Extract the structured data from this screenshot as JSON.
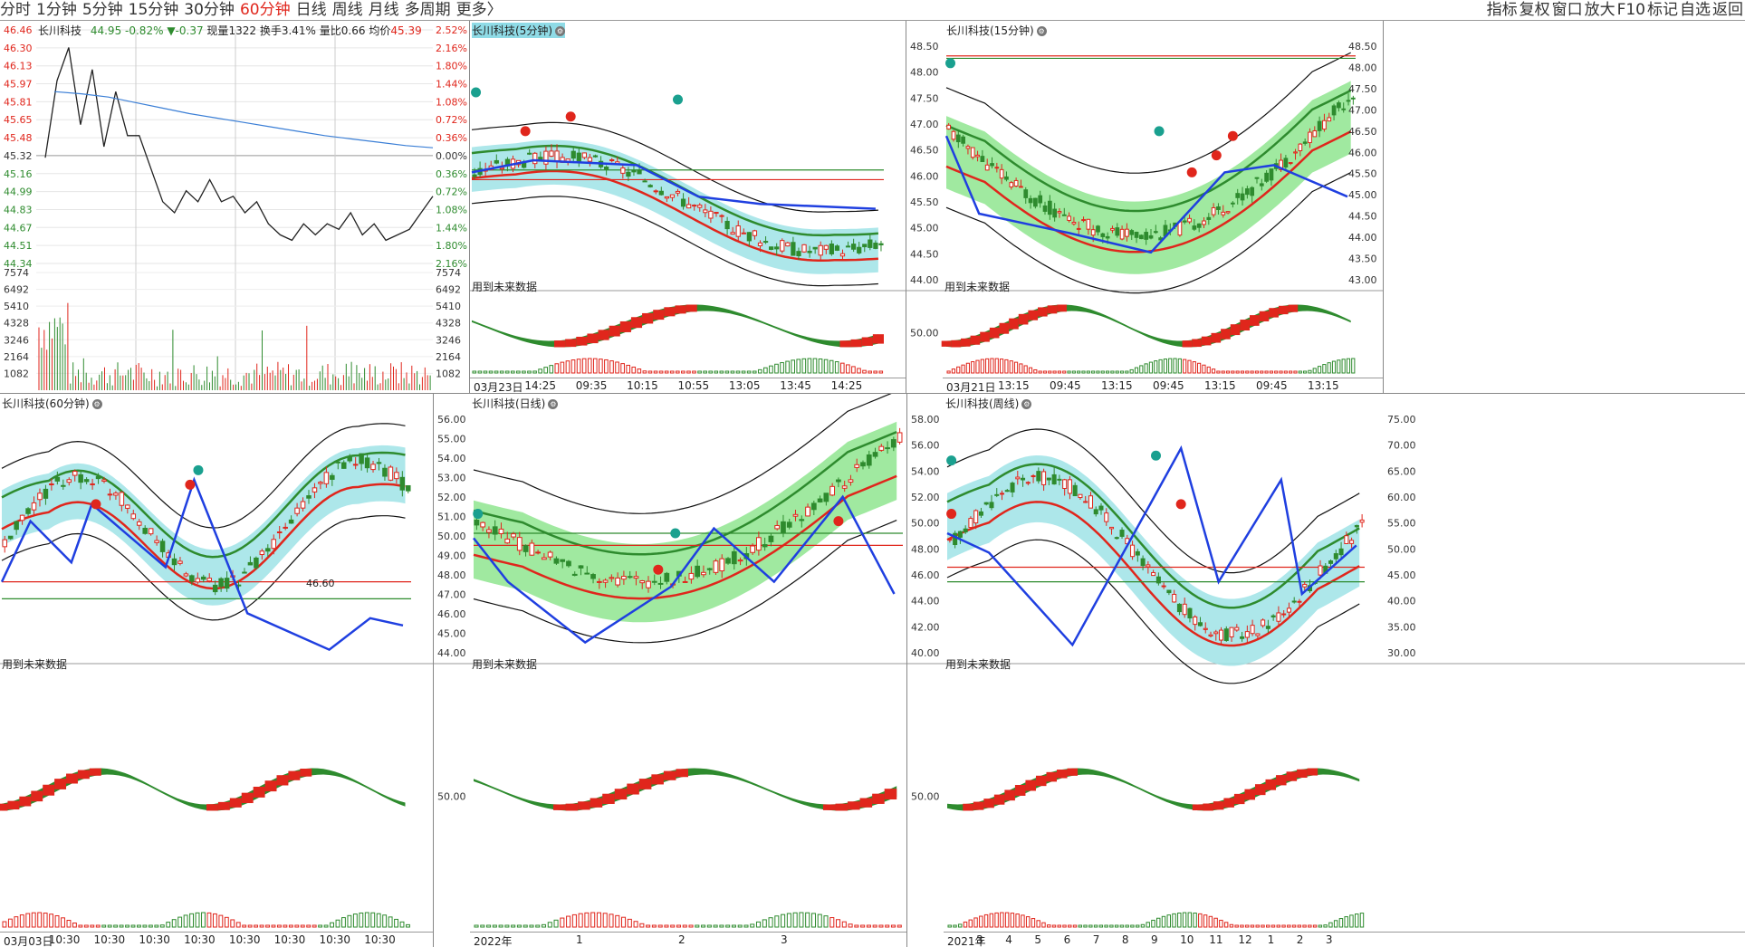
{
  "toolbar": {
    "timeframes": [
      "分时",
      "1分钟",
      "5分钟",
      "15分钟",
      "30分钟",
      "60分钟",
      "日线",
      "周线",
      "月线",
      "多周期",
      "更多〉"
    ],
    "active_timeframe": "60分钟",
    "right_items": [
      "指标",
      "复权",
      "窗口",
      "放大",
      "F10",
      "标记",
      "自选",
      "返回"
    ]
  },
  "intraday": {
    "stock_name": "长川科技",
    "price": "44.95",
    "change_pct": "-0.82%",
    "change": "▼-0.37",
    "volume_label": "现量",
    "volume": "1322",
    "turnover_label": "换手",
    "turnover": "3.41%",
    "ratio_label": "量比",
    "ratio": "0.66",
    "avg_label": "均价",
    "avg": "45.39",
    "price_ticks": [
      "46.46",
      "46.30",
      "46.13",
      "45.97",
      "45.81",
      "45.65",
      "45.48",
      "45.32",
      "45.16",
      "44.99",
      "44.83",
      "44.67",
      "44.51",
      "44.34"
    ],
    "pct_ticks": [
      "2.52%",
      "2.16%",
      "1.80%",
      "1.44%",
      "1.08%",
      "0.72%",
      "0.36%",
      "0.00%",
      "0.36%",
      "0.72%",
      "1.08%",
      "1.44%",
      "1.80%",
      "2.16%"
    ],
    "vol_ticks": [
      "7574",
      "6492",
      "5410",
      "4328",
      "3246",
      "2164",
      "1082"
    ],
    "price_series": [
      45.3,
      46.0,
      46.3,
      45.6,
      46.1,
      45.4,
      45.9,
      45.5,
      45.5,
      45.2,
      44.9,
      44.8,
      45.0,
      44.9,
      45.1,
      44.9,
      44.95,
      44.8,
      44.9,
      44.7,
      44.6,
      44.55,
      44.7,
      44.6,
      44.7,
      44.65,
      44.8,
      44.6,
      44.7,
      44.55,
      44.6,
      44.65,
      44.8,
      44.95
    ],
    "avg_series": [
      45.9,
      45.88,
      45.85,
      45.8,
      45.75,
      45.7,
      45.66,
      45.62,
      45.58,
      45.54,
      45.5,
      45.47,
      45.44,
      45.41,
      45.39
    ]
  },
  "panels": [
    {
      "title": "长川科技(5分钟)",
      "highlight": true,
      "future_label": "用到未来数据",
      "y_ticks": [],
      "x_labels": [
        "03月23日",
        "14:25",
        "09:35",
        "10:15",
        "10:55",
        "13:05",
        "13:45",
        "14:25"
      ]
    },
    {
      "title": "长川科技(15分钟)",
      "highlight": false,
      "future_label": "用到未来数据",
      "y_ticks": [
        "48.50",
        "48.00",
        "47.50",
        "47.00",
        "46.50",
        "46.00",
        "45.50",
        "45.00",
        "44.50",
        "44.00"
      ],
      "y_right": [
        "48.50",
        "48.00",
        "47.50",
        "47.00",
        "46.50",
        "46.00",
        "45.50",
        "45.00",
        "44.50",
        "44.00",
        "43.50",
        "43.00"
      ],
      "osc_tick": "50.00",
      "x_labels": [
        "03月21日",
        "13:15",
        "09:45",
        "13:15",
        "09:45",
        "13:15",
        "09:45",
        "13:15"
      ]
    },
    {
      "title": "长川科技(60分钟)",
      "highlight": false,
      "future_label": "用到未来数据",
      "price_label": "46.60",
      "x_labels": [
        "03月03日",
        "10:30",
        "10:30",
        "10:30",
        "10:30",
        "10:30",
        "10:30",
        "10:30",
        "10:30"
      ]
    },
    {
      "title": "长川科技(日线)",
      "highlight": false,
      "future_label": "用到未来数据",
      "y_ticks": [
        "56.00",
        "55.00",
        "54.00",
        "53.00",
        "52.00",
        "51.00",
        "50.00",
        "49.00",
        "48.00",
        "47.00",
        "46.00",
        "45.00",
        "44.00"
      ],
      "osc_tick": "50.00",
      "x_labels": [
        "2022年",
        "1",
        "2",
        "3"
      ]
    },
    {
      "title": "长川科技(周线)",
      "highlight": false,
      "future_label": "用到未来数据",
      "y_ticks": [
        "58.00",
        "56.00",
        "54.00",
        "52.00",
        "50.00",
        "48.00",
        "46.00",
        "44.00",
        "42.00",
        "40.00"
      ],
      "y_right": [
        "75.00",
        "70.00",
        "65.00",
        "60.00",
        "55.00",
        "50.00",
        "45.00",
        "40.00",
        "35.00",
        "30.00"
      ],
      "osc_tick": "50.00",
      "x_labels": [
        "2021年",
        "3",
        "4",
        "5",
        "6",
        "7",
        "8",
        "9",
        "10",
        "11",
        "12",
        "1",
        "2",
        "3"
      ]
    }
  ],
  "colors": {
    "up": "#e0261c",
    "down": "#2e8b2e",
    "avg_line": "#3b7fd6",
    "band_green": "#8fe58f",
    "band_cyan": "#9fe3e6",
    "ma_blue": "#1f3fe0"
  }
}
